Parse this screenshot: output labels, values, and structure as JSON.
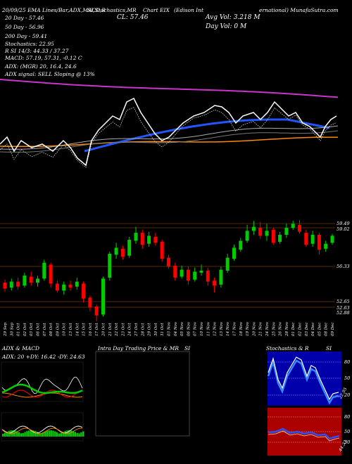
{
  "header": {
    "top_line": "20 · 09/09/25 - EMA Lines/Bar.ADX,MACD,B · SI,Stochastics.MR · Chart EIX · (Edison Int · ernational) MunafaSutra.com",
    "part1": "20/09/25 EMA Lines/Bar,ADX,MACD,B",
    "part2": "SI,Stochastics,MR",
    "part3": "Chart EIX",
    "part4": "(Edison Int",
    "part5": "ernational) MunafaSutra.com",
    "ema20": "20  Day - 57.46",
    "ema50": "50  Day - 56.96",
    "ema200": "200  Day - 59.41",
    "stochastics": "Stochastics: 22.95",
    "rsi": "R            SI 14/3: 44.33 / 37.27",
    "macd": "MACD: 57.19, 57.31, -0.12  C",
    "adx": "ADX:                              (MGR) 20, 16.4, 24.6",
    "adx_signal": "ADX  signal: SELL  Sloping @ 13%",
    "close": "CL: 57.46",
    "avg_vol": "Avg Vol: 3.218  M",
    "day_vol": "Day Vol: 0   M"
  },
  "price_axis": [
    "59.49",
    "59.02",
    "56.33",
    "52.65",
    "52.63",
    "52.88"
  ],
  "x_dates": [
    "29 Sep",
    "30 Sep",
    "01 Oct",
    "02 Oct",
    "03 Oct",
    "06 Oct",
    "07 Oct",
    "08 Oct",
    "09 Oct",
    "10 Oct",
    "13 Oct",
    "14 Oct",
    "15 Oct",
    "16 Oct",
    "17 Oct",
    "20 Oct",
    "21 Oct",
    "22 Oct",
    "23 Oct",
    "24 Oct",
    "27 Oct",
    "28 Oct",
    "29 Oct",
    "30 Oct",
    "31 Oct",
    "03 Nov",
    "04 Nov",
    "05 Nov",
    "06 Nov",
    "07 Nov",
    "10 Nov",
    "11 Nov",
    "12 Nov",
    "13 Nov",
    "14 Nov",
    "17 Nov",
    "18 Nov",
    "19 Nov",
    "20 Nov",
    "21 Nov",
    "24 Nov",
    "25 Nov",
    "26 Nov",
    "28 Nov",
    "01 Dec",
    "02 Dec",
    "03 Dec",
    "04 Dec",
    "05 Dec",
    "08 Dec",
    "09 Dec"
  ],
  "panels": {
    "adx_macd": "ADX  & MACD",
    "adx_values": "ADX: 20  +DY: 16.42  -DY: 24.63",
    "intraday": "Intra Day Trading Price  & MR",
    "intraday_si": "SI",
    "stoch": "Stochastics & R",
    "stoch_si": "SI",
    "stoch_axis": [
      "80",
      "50",
      "20",
      "22.95"
    ],
    "rsi_axis": [
      "80",
      "50",
      "30",
      "44.33"
    ]
  },
  "colors": {
    "up": "#00cc00",
    "down": "#ff0000",
    "ema200": "#cc33cc",
    "ema50": "#2255ff",
    "ema20": "#ffffff",
    "orange": "#ff8800",
    "grid": "#aa5500",
    "panel_bg_blue": "#0000aa",
    "panel_bg_red": "#aa0000"
  },
  "chart_data": {
    "type": "candlestick",
    "ticker": "EIX",
    "closing_price": 57.46,
    "candles": [
      {
        "o": 52.8,
        "c": 52.2,
        "h": 53.1,
        "l": 51.9
      },
      {
        "o": 52.3,
        "c": 52.9,
        "h": 53.2,
        "l": 52.0
      },
      {
        "o": 52.9,
        "c": 52.4,
        "h": 53.3,
        "l": 52.1
      },
      {
        "o": 52.5,
        "c": 53.5,
        "h": 53.8,
        "l": 52.3
      },
      {
        "o": 53.4,
        "c": 52.8,
        "h": 53.9,
        "l": 52.5
      },
      {
        "o": 52.8,
        "c": 53.2,
        "h": 53.5,
        "l": 52.4
      },
      {
        "o": 53.2,
        "c": 54.8,
        "h": 55.1,
        "l": 53.0
      },
      {
        "o": 54.6,
        "c": 52.7,
        "h": 54.8,
        "l": 52.3
      },
      {
        "o": 52.7,
        "c": 52.0,
        "h": 53.0,
        "l": 51.8
      },
      {
        "o": 52.0,
        "c": 52.6,
        "h": 52.9,
        "l": 51.6
      },
      {
        "o": 52.6,
        "c": 52.3,
        "h": 53.0,
        "l": 52.0
      },
      {
        "o": 52.4,
        "c": 52.9,
        "h": 53.3,
        "l": 52.1
      },
      {
        "o": 52.7,
        "c": 51.2,
        "h": 52.9,
        "l": 50.8
      },
      {
        "o": 51.3,
        "c": 50.3,
        "h": 51.5,
        "l": 49.9
      },
      {
        "o": 50.4,
        "c": 49.5,
        "h": 50.6,
        "l": 48.9
      },
      {
        "o": 49.6,
        "c": 53.2,
        "h": 53.4,
        "l": 49.4
      },
      {
        "o": 53.3,
        "c": 55.7,
        "h": 55.9,
        "l": 53.0
      },
      {
        "o": 55.6,
        "c": 56.3,
        "h": 56.8,
        "l": 55.2
      },
      {
        "o": 56.2,
        "c": 55.4,
        "h": 56.5,
        "l": 55.1
      },
      {
        "o": 55.5,
        "c": 57.1,
        "h": 57.4,
        "l": 55.3
      },
      {
        "o": 57.0,
        "c": 57.8,
        "h": 58.4,
        "l": 56.7
      },
      {
        "o": 57.8,
        "c": 56.6,
        "h": 58.1,
        "l": 56.2
      },
      {
        "o": 56.7,
        "c": 57.5,
        "h": 57.9,
        "l": 56.4
      },
      {
        "o": 57.4,
        "c": 56.8,
        "h": 57.8,
        "l": 56.5
      },
      {
        "o": 56.9,
        "c": 55.2,
        "h": 57.1,
        "l": 54.9
      },
      {
        "o": 55.3,
        "c": 54.4,
        "h": 55.6,
        "l": 54.2
      },
      {
        "o": 54.5,
        "c": 53.3,
        "h": 54.8,
        "l": 53.0
      },
      {
        "o": 53.4,
        "c": 54.1,
        "h": 54.5,
        "l": 53.2
      },
      {
        "o": 54.1,
        "c": 53.0,
        "h": 54.4,
        "l": 52.6
      },
      {
        "o": 53.1,
        "c": 53.9,
        "h": 54.3,
        "l": 52.9
      },
      {
        "o": 53.8,
        "c": 54.0,
        "h": 54.6,
        "l": 53.5
      },
      {
        "o": 54.0,
        "c": 52.9,
        "h": 54.3,
        "l": 52.5
      },
      {
        "o": 53.0,
        "c": 52.5,
        "h": 53.3,
        "l": 51.8
      },
      {
        "o": 52.6,
        "c": 54.1,
        "h": 54.4,
        "l": 52.3
      },
      {
        "o": 54.0,
        "c": 55.3,
        "h": 55.7,
        "l": 53.8
      },
      {
        "o": 55.2,
        "c": 56.3,
        "h": 56.6,
        "l": 55.0
      },
      {
        "o": 56.1,
        "c": 57.0,
        "h": 57.3,
        "l": 55.9
      },
      {
        "o": 57.0,
        "c": 58.0,
        "h": 58.6,
        "l": 56.8
      },
      {
        "o": 58.0,
        "c": 58.4,
        "h": 59.0,
        "l": 57.6
      },
      {
        "o": 58.3,
        "c": 57.5,
        "h": 58.9,
        "l": 57.2
      },
      {
        "o": 57.5,
        "c": 58.0,
        "h": 58.7,
        "l": 57.0
      },
      {
        "o": 58.1,
        "c": 56.8,
        "h": 58.3,
        "l": 56.6
      },
      {
        "o": 56.9,
        "c": 57.6,
        "h": 57.9,
        "l": 56.7
      },
      {
        "o": 57.6,
        "c": 58.3,
        "h": 58.7,
        "l": 57.3
      },
      {
        "o": 58.3,
        "c": 58.7,
        "h": 59.0,
        "l": 58.1
      },
      {
        "o": 58.6,
        "c": 57.9,
        "h": 59.1,
        "l": 57.7
      },
      {
        "o": 57.8,
        "c": 56.6,
        "h": 58.1,
        "l": 56.4
      },
      {
        "o": 56.7,
        "c": 57.6,
        "h": 58.0,
        "l": 56.4
      },
      {
        "o": 57.6,
        "c": 56.1,
        "h": 57.8,
        "l": 55.6
      },
      {
        "o": 56.2,
        "c": 56.7,
        "h": 57.0,
        "l": 55.9
      },
      {
        "o": 56.8,
        "c": 57.5,
        "h": 57.7,
        "l": 56.6
      }
    ],
    "ylim": [
      48,
      60
    ]
  }
}
